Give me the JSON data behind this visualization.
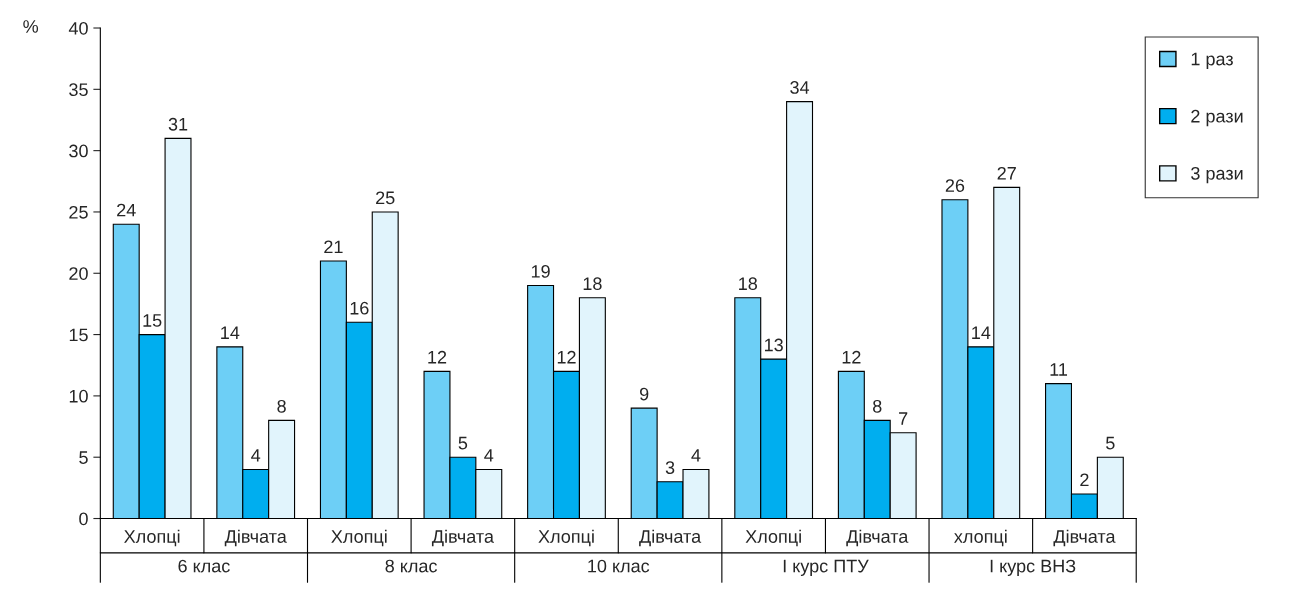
{
  "chart_data": {
    "type": "bar",
    "ylabel": "%",
    "categories": [
      "Хлопці",
      "Дівчата",
      "Хлопці",
      "Дівчата",
      "Хлопці",
      "Дівчата",
      "Хлопці",
      "Дівчата",
      "хлопці",
      "Дівчата"
    ],
    "series": [
      {
        "name": "1 раз",
        "color": "#6dcff6",
        "values": [
          24,
          14,
          21,
          12,
          19,
          9,
          18,
          12,
          26,
          11
        ]
      },
      {
        "name": "2 рази",
        "color": "#00aeef",
        "values": [
          15,
          4,
          16,
          5,
          12,
          3,
          13,
          8,
          14,
          2
        ]
      },
      {
        "name": "3 рази",
        "color": "#e1f4fc",
        "values": [
          31,
          8,
          25,
          4,
          18,
          4,
          34,
          7,
          27,
          5
        ]
      }
    ],
    "annotations": [
      "6 клас",
      "8 клас",
      "10 клас",
      "І курс ПТУ",
      "І курс ВНЗ"
    ],
    "ylim": [
      0,
      40
    ],
    "yticks": [
      0,
      5,
      10,
      15,
      20,
      25,
      30,
      35,
      40
    ],
    "data_labels": true,
    "grid": false,
    "legend": "top right"
  }
}
